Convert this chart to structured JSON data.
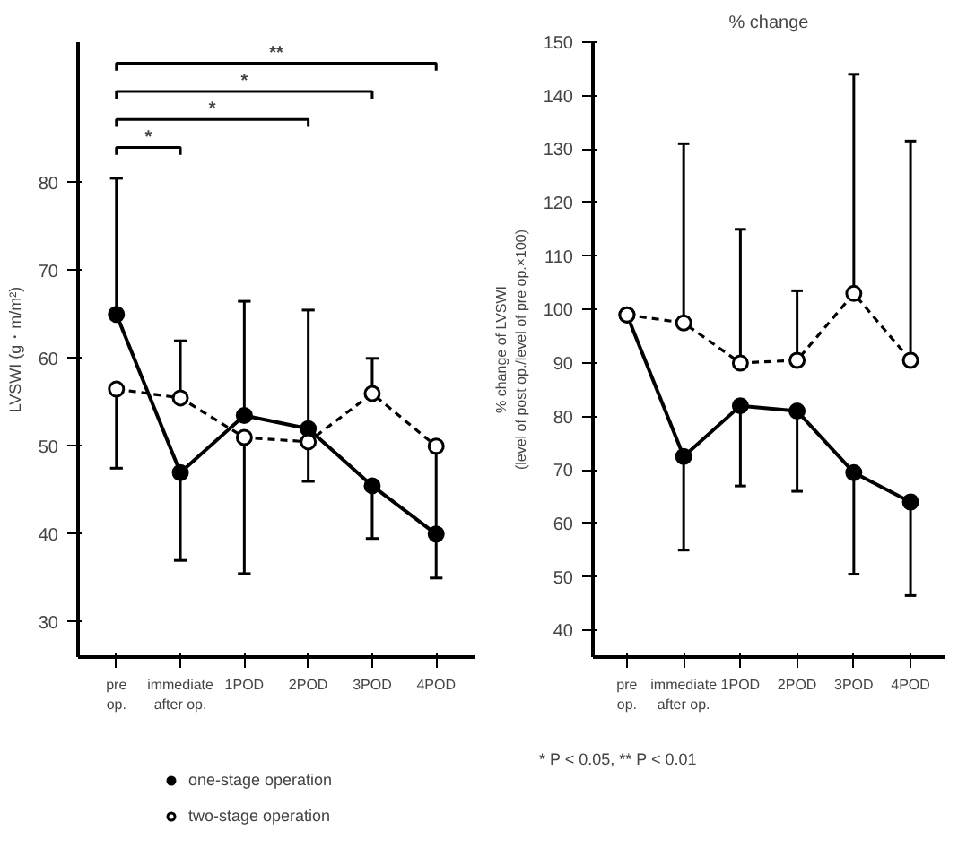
{
  "chart_data": [
    {
      "type": "line",
      "ylabel": "LVSWI (g・m/m²)",
      "categories": [
        "pre\nop.",
        "immediate\nafter op.",
        "1POD",
        "2POD",
        "3POD",
        "4POD"
      ],
      "ylim": [
        26,
        96
      ],
      "yticks": [
        30,
        40,
        50,
        60,
        70,
        80
      ],
      "marker": "circle",
      "legend": "bottom",
      "grid": false,
      "series": [
        {
          "name": "one-stage operation",
          "color": "#000000",
          "line_style": "solid",
          "values": [
            65,
            47,
            53.5,
            52,
            45.5,
            40
          ],
          "errors": [
            [
              65,
              80.5
            ],
            [
              37,
              47
            ],
            [
              53.5,
              66.5
            ],
            [
              52,
              65.5
            ],
            [
              39.5,
              45.5
            ],
            [
              35,
              49.5
            ]
          ]
        },
        {
          "name": "two-stage operation",
          "color": "#000000",
          "line_style": "dashed",
          "values": [
            56.5,
            55.5,
            51,
            50.5,
            56,
            50
          ],
          "errors": [
            [
              47.5,
              56.5
            ],
            [
              55.5,
              62
            ],
            [
              35.5,
              51
            ],
            [
              46,
              50.5
            ],
            [
              56,
              60
            ],
            null
          ]
        }
      ],
      "annotations": [
        "*",
        "*",
        "*",
        "**",
        "* P < 0.05,   ** P < 0.01"
      ]
    },
    {
      "type": "line",
      "title": "% change",
      "ylabel": "% change of LVSWI\n(level of post op./level of pre op.×100)",
      "categories": [
        "pre\nop.",
        "immediate\nafter op.",
        "1POD",
        "2POD",
        "3POD",
        "4POD"
      ],
      "ylim": [
        35,
        150
      ],
      "yticks": [
        40,
        50,
        60,
        70,
        80,
        90,
        100,
        110,
        120,
        130,
        140,
        150
      ],
      "marker": "circle",
      "legend": false,
      "grid": false,
      "series": [
        {
          "color": "#000000",
          "line_style": "solid",
          "values": [
            99,
            72.5,
            82,
            81,
            69.5,
            64
          ],
          "errors": [
            null,
            [
              55,
              72.5
            ],
            [
              67,
              82
            ],
            [
              66,
              81
            ],
            [
              50.5,
              69.5
            ],
            [
              46.5,
              64
            ]
          ]
        },
        {
          "color": "#000000",
          "line_style": "dashed",
          "values": [
            99,
            97.5,
            90,
            90.5,
            103,
            90.5
          ],
          "errors": [
            null,
            [
              97.5,
              131
            ],
            [
              90,
              115
            ],
            [
              90.5,
              103.5
            ],
            [
              103,
              144
            ],
            [
              90.5,
              131.5
            ]
          ]
        }
      ]
    }
  ]
}
